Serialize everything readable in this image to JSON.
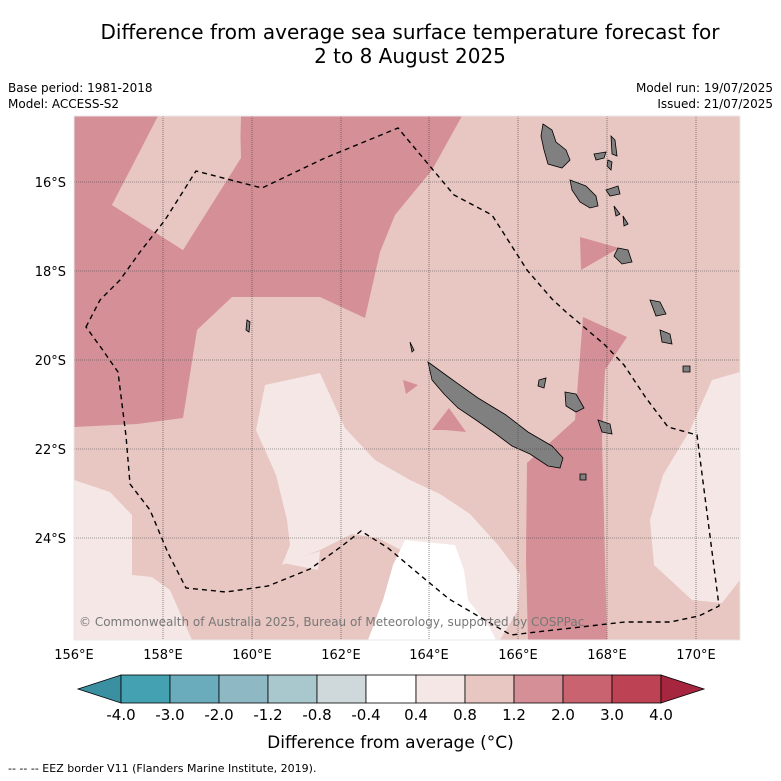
{
  "title_line1": "Difference from average sea surface temperature forecast for",
  "title_line2": "2 to 8 August 2025",
  "meta_left": {
    "base_period": "Base period: 1981-2018",
    "model": "Model: ACCESS-S2"
  },
  "meta_right": {
    "model_run": "Model run: 19/07/2025",
    "issued": "Issued: 21/07/2025"
  },
  "map": {
    "lat_labels": [
      "16°S",
      "18°S",
      "20°S",
      "22°S",
      "24°S"
    ],
    "lon_labels": [
      "156°E",
      "158°E",
      "160°E",
      "162°E",
      "164°E",
      "166°E",
      "168°E",
      "170°E"
    ],
    "copyright": "© Commonwealth of Australia 2025, Bureau of Meteorology, supported by COSPPac",
    "land_color": "#808080"
  },
  "colorbar": {
    "tick_labels": [
      "-4.0",
      "-3.0",
      "-2.0",
      "-1.2",
      "-0.8",
      "-0.4",
      "0.4",
      "0.8",
      "1.2",
      "2.0",
      "3.0",
      "4.0"
    ],
    "colors": [
      "#3a8fa0",
      "#44a1b1",
      "#6aacbb",
      "#8db8c4",
      "#a9c8cd",
      "#cfd9db",
      "#ffffff",
      "#f4e7e5",
      "#e8c6c1",
      "#d58f96",
      "#c8636f",
      "#bc4254",
      "#a6263f"
    ],
    "title": "Difference from average (°C)"
  },
  "footer": "--  --  -- EEZ border V11 (Flanders Marine Institute, 2019)."
}
